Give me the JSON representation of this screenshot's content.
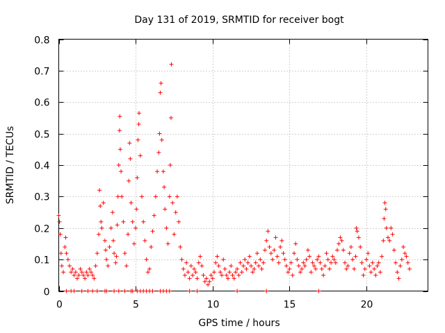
{
  "chart_data": {
    "type": "scatter",
    "title": "Day 131 of 2019, SRMTID for receiver bogt",
    "xlabel": "GPS time / hours",
    "ylabel": "SRMTID / TECUs",
    "xlim": [
      0,
      24
    ],
    "ylim": [
      0,
      0.8
    ],
    "xticks": [
      0,
      5,
      10,
      15,
      20
    ],
    "xtick_labels": [
      "0",
      "5",
      "10",
      "15",
      "20"
    ],
    "yticks": [
      0,
      0.1,
      0.2,
      0.3,
      0.4,
      0.5,
      0.6,
      0.7,
      0.8
    ],
    "ytick_labels": [
      "0",
      "0.1",
      "0.2",
      "0.3",
      "0.4",
      "0.5",
      "0.6",
      "0.7",
      "0.8"
    ],
    "grid": true,
    "marker": "+",
    "color": "#ff0000",
    "series": [
      {
        "name": "bogt",
        "points": [
          [
            0.0,
            0.24
          ],
          [
            0.05,
            0.22
          ],
          [
            0.1,
            0.18
          ],
          [
            0.15,
            0.12
          ],
          [
            0.2,
            0.08
          ],
          [
            0.3,
            0.06
          ],
          [
            0.4,
            0.14
          ],
          [
            0.45,
            0.17
          ],
          [
            0.5,
            0.12
          ],
          [
            0.6,
            0.1
          ],
          [
            0.7,
            0.08
          ],
          [
            0.8,
            0.06
          ],
          [
            0.9,
            0.07
          ],
          [
            1.0,
            0.05
          ],
          [
            1.1,
            0.06
          ],
          [
            1.2,
            0.04
          ],
          [
            1.3,
            0.05
          ],
          [
            1.4,
            0.07
          ],
          [
            1.5,
            0.06
          ],
          [
            1.6,
            0.05
          ],
          [
            1.7,
            0.04
          ],
          [
            1.8,
            0.06
          ],
          [
            1.9,
            0.05
          ],
          [
            2.0,
            0.07
          ],
          [
            2.1,
            0.06
          ],
          [
            2.2,
            0.05
          ],
          [
            2.3,
            0.04
          ],
          [
            2.4,
            0.08
          ],
          [
            2.5,
            0.12
          ],
          [
            2.6,
            0.18
          ],
          [
            2.65,
            0.32
          ],
          [
            2.7,
            0.27
          ],
          [
            2.75,
            0.22
          ],
          [
            2.8,
            0.2
          ],
          [
            2.9,
            0.28
          ],
          [
            3.0,
            0.16
          ],
          [
            3.05,
            0.13
          ],
          [
            3.1,
            0.1
          ],
          [
            3.2,
            0.08
          ],
          [
            3.3,
            0.14
          ],
          [
            3.4,
            0.2
          ],
          [
            3.5,
            0.25
          ],
          [
            3.55,
            0.16
          ],
          [
            3.6,
            0.12
          ],
          [
            3.7,
            0.09
          ],
          [
            3.75,
            0.11
          ],
          [
            3.8,
            0.21
          ],
          [
            3.85,
            0.3
          ],
          [
            3.9,
            0.4
          ],
          [
            3.95,
            0.51
          ],
          [
            3.97,
            0.555
          ],
          [
            4.0,
            0.45
          ],
          [
            4.05,
            0.38
          ],
          [
            4.1,
            0.3
          ],
          [
            4.2,
            0.22
          ],
          [
            4.3,
            0.12
          ],
          [
            4.4,
            0.08
          ],
          [
            4.5,
            0.18
          ],
          [
            4.55,
            0.35
          ],
          [
            4.6,
            0.47
          ],
          [
            4.65,
            0.42
          ],
          [
            4.7,
            0.28
          ],
          [
            4.8,
            0.22
          ],
          [
            4.9,
            0.15
          ],
          [
            5.0,
            0.2
          ],
          [
            5.05,
            0.26
          ],
          [
            5.1,
            0.36
          ],
          [
            5.15,
            0.48
          ],
          [
            5.2,
            0.53
          ],
          [
            5.22,
            0.565
          ],
          [
            5.3,
            0.43
          ],
          [
            5.4,
            0.3
          ],
          [
            5.5,
            0.22
          ],
          [
            5.6,
            0.16
          ],
          [
            5.7,
            0.1
          ],
          [
            5.8,
            0.06
          ],
          [
            5.9,
            0.07
          ],
          [
            6.0,
            0.14
          ],
          [
            6.1,
            0.19
          ],
          [
            6.2,
            0.24
          ],
          [
            6.3,
            0.3
          ],
          [
            6.4,
            0.38
          ],
          [
            6.5,
            0.44
          ],
          [
            6.55,
            0.5
          ],
          [
            6.6,
            0.63
          ],
          [
            6.65,
            0.66
          ],
          [
            6.7,
            0.48
          ],
          [
            6.8,
            0.38
          ],
          [
            6.85,
            0.33
          ],
          [
            6.9,
            0.26
          ],
          [
            7.0,
            0.2
          ],
          [
            7.1,
            0.15
          ],
          [
            7.2,
            0.3
          ],
          [
            7.25,
            0.4
          ],
          [
            7.3,
            0.55
          ],
          [
            7.32,
            0.72
          ],
          [
            7.4,
            0.28
          ],
          [
            7.5,
            0.18
          ],
          [
            7.6,
            0.25
          ],
          [
            7.7,
            0.3
          ],
          [
            7.8,
            0.22
          ],
          [
            7.9,
            0.14
          ],
          [
            8.0,
            0.1
          ],
          [
            8.1,
            0.07
          ],
          [
            8.2,
            0.05
          ],
          [
            8.3,
            0.09
          ],
          [
            8.4,
            0.06
          ],
          [
            8.5,
            0.04
          ],
          [
            8.6,
            0.08
          ],
          [
            8.7,
            0.05
          ],
          [
            8.8,
            0.07
          ],
          [
            8.9,
            0.06
          ],
          [
            9.0,
            0.04
          ],
          [
            9.1,
            0.09
          ],
          [
            9.2,
            0.11
          ],
          [
            9.3,
            0.08
          ],
          [
            9.4,
            0.05
          ],
          [
            9.5,
            0.03
          ],
          [
            9.6,
            0.04
          ],
          [
            9.7,
            0.02
          ],
          [
            9.8,
            0.03
          ],
          [
            9.9,
            0.05
          ],
          [
            10.0,
            0.04
          ],
          [
            10.1,
            0.06
          ],
          [
            10.2,
            0.09
          ],
          [
            10.3,
            0.11
          ],
          [
            10.4,
            0.08
          ],
          [
            10.5,
            0.06
          ],
          [
            10.6,
            0.05
          ],
          [
            10.7,
            0.1
          ],
          [
            10.8,
            0.07
          ],
          [
            10.9,
            0.05
          ],
          [
            11.0,
            0.04
          ],
          [
            11.1,
            0.06
          ],
          [
            11.2,
            0.08
          ],
          [
            11.3,
            0.05
          ],
          [
            11.4,
            0.04
          ],
          [
            11.5,
            0.06
          ],
          [
            11.6,
            0.07
          ],
          [
            11.7,
            0.05
          ],
          [
            11.8,
            0.09
          ],
          [
            11.9,
            0.06
          ],
          [
            12.0,
            0.08
          ],
          [
            12.1,
            0.1
          ],
          [
            12.2,
            0.07
          ],
          [
            12.3,
            0.09
          ],
          [
            12.4,
            0.11
          ],
          [
            12.5,
            0.08
          ],
          [
            12.6,
            0.06
          ],
          [
            12.7,
            0.07
          ],
          [
            12.8,
            0.09
          ],
          [
            12.9,
            0.12
          ],
          [
            13.0,
            0.08
          ],
          [
            13.1,
            0.1
          ],
          [
            13.2,
            0.07
          ],
          [
            13.3,
            0.09
          ],
          [
            13.4,
            0.13
          ],
          [
            13.5,
            0.16
          ],
          [
            13.6,
            0.19
          ],
          [
            13.7,
            0.14
          ],
          [
            13.8,
            0.12
          ],
          [
            13.9,
            0.1
          ],
          [
            14.0,
            0.13
          ],
          [
            14.1,
            0.17
          ],
          [
            14.2,
            0.11
          ],
          [
            14.3,
            0.09
          ],
          [
            14.4,
            0.14
          ],
          [
            14.5,
            0.16
          ],
          [
            14.6,
            0.12
          ],
          [
            14.7,
            0.1
          ],
          [
            14.8,
            0.08
          ],
          [
            14.9,
            0.06
          ],
          [
            15.0,
            0.07
          ],
          [
            15.1,
            0.09
          ],
          [
            15.2,
            0.05
          ],
          [
            15.3,
            0.12
          ],
          [
            15.4,
            0.15
          ],
          [
            15.5,
            0.1
          ],
          [
            15.6,
            0.08
          ],
          [
            15.7,
            0.06
          ],
          [
            15.8,
            0.07
          ],
          [
            15.9,
            0.09
          ],
          [
            16.0,
            0.08
          ],
          [
            16.1,
            0.1
          ],
          [
            16.2,
            0.13
          ],
          [
            16.3,
            0.11
          ],
          [
            16.4,
            0.06
          ],
          [
            16.5,
            0.09
          ],
          [
            16.6,
            0.08
          ],
          [
            16.7,
            0.07
          ],
          [
            16.8,
            0.1
          ],
          [
            16.9,
            0.11
          ],
          [
            17.0,
            0.09
          ],
          [
            17.1,
            0.07
          ],
          [
            17.2,
            0.05
          ],
          [
            17.3,
            0.08
          ],
          [
            17.4,
            0.12
          ],
          [
            17.5,
            0.1
          ],
          [
            17.6,
            0.07
          ],
          [
            17.7,
            0.09
          ],
          [
            17.8,
            0.11
          ],
          [
            17.9,
            0.1
          ],
          [
            18.0,
            0.09
          ],
          [
            18.1,
            0.13
          ],
          [
            18.2,
            0.15
          ],
          [
            18.3,
            0.17
          ],
          [
            18.4,
            0.16
          ],
          [
            18.5,
            0.13
          ],
          [
            18.6,
            0.09
          ],
          [
            18.7,
            0.07
          ],
          [
            18.8,
            0.08
          ],
          [
            18.9,
            0.12
          ],
          [
            19.0,
            0.14
          ],
          [
            19.1,
            0.1
          ],
          [
            19.2,
            0.07
          ],
          [
            19.3,
            0.11
          ],
          [
            19.35,
            0.2
          ],
          [
            19.4,
            0.19
          ],
          [
            19.5,
            0.17
          ],
          [
            19.6,
            0.14
          ],
          [
            19.7,
            0.09
          ],
          [
            19.8,
            0.05
          ],
          [
            19.9,
            0.07
          ],
          [
            20.0,
            0.1
          ],
          [
            20.1,
            0.12
          ],
          [
            20.2,
            0.08
          ],
          [
            20.3,
            0.06
          ],
          [
            20.4,
            0.09
          ],
          [
            20.5,
            0.07
          ],
          [
            20.6,
            0.05
          ],
          [
            20.7,
            0.08
          ],
          [
            20.8,
            0.09
          ],
          [
            20.9,
            0.06
          ],
          [
            21.0,
            0.11
          ],
          [
            21.1,
            0.16
          ],
          [
            21.15,
            0.23
          ],
          [
            21.2,
            0.28
          ],
          [
            21.25,
            0.26
          ],
          [
            21.3,
            0.2
          ],
          [
            21.4,
            0.17
          ],
          [
            21.5,
            0.16
          ],
          [
            21.6,
            0.2
          ],
          [
            21.7,
            0.18
          ],
          [
            21.8,
            0.13
          ],
          [
            21.9,
            0.09
          ],
          [
            22.0,
            0.06
          ],
          [
            22.1,
            0.04
          ],
          [
            22.2,
            0.08
          ],
          [
            22.3,
            0.1
          ],
          [
            22.4,
            0.14
          ],
          [
            22.5,
            0.12
          ],
          [
            22.6,
            0.11
          ],
          [
            22.7,
            0.09
          ],
          [
            22.8,
            0.07
          ],
          [
            0.5,
            0.0
          ],
          [
            0.8,
            0.0
          ],
          [
            1.0,
            0.0
          ],
          [
            1.5,
            0.0
          ],
          [
            1.9,
            0.0
          ],
          [
            2.2,
            0.0
          ],
          [
            2.5,
            0.0
          ],
          [
            3.0,
            0.0
          ],
          [
            3.1,
            0.0
          ],
          [
            3.6,
            0.0
          ],
          [
            3.9,
            0.0
          ],
          [
            4.3,
            0.0
          ],
          [
            4.7,
            0.0
          ],
          [
            4.8,
            0.0
          ],
          [
            5.1,
            0.0
          ],
          [
            5.3,
            0.0
          ],
          [
            5.5,
            0.0
          ],
          [
            5.7,
            0.0
          ],
          [
            5.9,
            0.0
          ],
          [
            6.1,
            0.0
          ],
          [
            6.6,
            0.0
          ],
          [
            6.8,
            0.0
          ],
          [
            7.0,
            0.0
          ],
          [
            7.2,
            0.0
          ],
          [
            8.5,
            0.0
          ],
          [
            9.0,
            0.0
          ],
          [
            11.6,
            0.0
          ],
          [
            13.5,
            0.0
          ],
          [
            16.9,
            0.0
          ]
        ]
      }
    ]
  }
}
